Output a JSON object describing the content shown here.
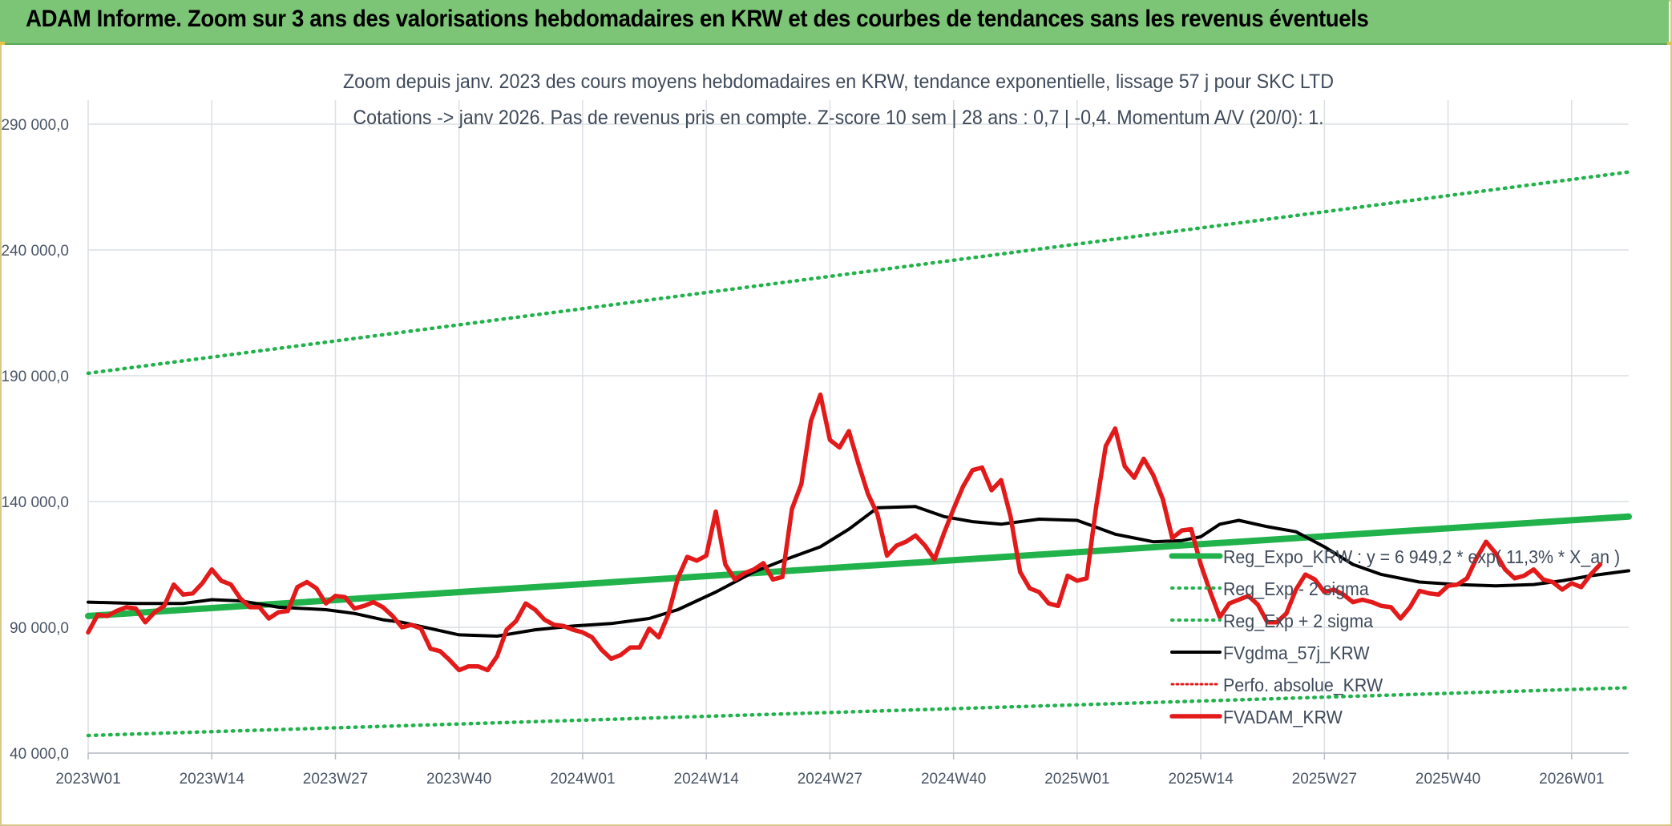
{
  "banner": {
    "title": "ADAM Informe. Zoom sur 3 ans des valorisations hebdomadaires en KRW et des courbes de tendances sans les revenus éventuels"
  },
  "chart_data": {
    "type": "line",
    "title_line1": "Zoom depuis janv. 2023 des cours moyens hebdomadaires en KRW, tendance exponentielle, lissage 57 j pour SKC LTD",
    "title_line2": "Cotations -> janv 2026. Pas de revenus pris en compte. Z-score 10 sem | 28 ans : 0,7 | -0,4. Momentum A/V (20/0): 1.",
    "x_ticks": [
      "2023W01",
      "2023W14",
      "2023W27",
      "2023W40",
      "2024W01",
      "2024W14",
      "2024W27",
      "2024W40",
      "2025W01",
      "2025W14",
      "2025W27",
      "2025W40",
      "2026W01"
    ],
    "y_ticks": [
      {
        "value": 40000,
        "label": "40 000,0"
      },
      {
        "value": 90000,
        "label": "90 000,0"
      },
      {
        "value": 140000,
        "label": "140 000,0"
      },
      {
        "value": 190000,
        "label": "190 000,0"
      },
      {
        "value": 240000,
        "label": "240 000,0"
      },
      {
        "value": 290000,
        "label": "290 000,0"
      }
    ],
    "ylim": [
      40000,
      290000
    ],
    "xlim": [
      0,
      162
    ],
    "grid": true,
    "legend_position": "right-inside",
    "legend": [
      {
        "name": "Reg_Expo_KRW : y = 6 949,2 * exp( 11,3% *  X_an )",
        "color": "#22b24c",
        "style": "solid-thick"
      },
      {
        "name": "Reg_Exp - 2 sigma",
        "color": "#22b24c",
        "style": "dotted"
      },
      {
        "name": "Reg_Exp + 2 sigma",
        "color": "#22b24c",
        "style": "dotted"
      },
      {
        "name": "FVgdma_57j_KRW",
        "color": "#000000",
        "style": "solid"
      },
      {
        "name": "Perfo. absolue_KRW",
        "color": "#e31a1a",
        "style": "dotted"
      },
      {
        "name": "FVADAM_KRW",
        "color": "#e31a1a",
        "style": "solid-thick"
      }
    ],
    "series": [
      {
        "name": "Reg_Expo_KRW",
        "color": "#22b24c",
        "points": [
          [
            0,
            94500
          ],
          [
            162,
            134000
          ]
        ]
      },
      {
        "name": "Reg_Exp - 2 sigma",
        "color": "#22b24c",
        "points": [
          [
            0,
            47000
          ],
          [
            162,
            66000
          ]
        ]
      },
      {
        "name": "Reg_Exp + 2 sigma",
        "color": "#22b24c",
        "points": [
          [
            0,
            191000
          ],
          [
            162,
            271000
          ]
        ]
      },
      {
        "name": "FVgdma_57j_KRW",
        "color": "#000000",
        "points": [
          [
            0,
            100000
          ],
          [
            5,
            99500
          ],
          [
            10,
            99500
          ],
          [
            13,
            101000
          ],
          [
            16,
            100500
          ],
          [
            20,
            98000
          ],
          [
            25,
            97000
          ],
          [
            28,
            95500
          ],
          [
            31,
            93000
          ],
          [
            33,
            92000
          ],
          [
            36,
            89500
          ],
          [
            39,
            87000
          ],
          [
            43,
            86500
          ],
          [
            47,
            89000
          ],
          [
            51,
            90500
          ],
          [
            55,
            91500
          ],
          [
            59,
            93500
          ],
          [
            62,
            97000
          ],
          [
            66,
            104000
          ],
          [
            70,
            112000
          ],
          [
            73,
            116500
          ],
          [
            77,
            122000
          ],
          [
            80,
            129000
          ],
          [
            83,
            137500
          ],
          [
            87,
            138000
          ],
          [
            90,
            134000
          ],
          [
            93,
            132000
          ],
          [
            96,
            131000
          ],
          [
            100,
            133000
          ],
          [
            104,
            132500
          ],
          [
            108,
            127000
          ],
          [
            112,
            124000
          ],
          [
            115,
            124500
          ],
          [
            117,
            126000
          ],
          [
            119,
            131000
          ],
          [
            121,
            132500
          ],
          [
            124,
            130000
          ],
          [
            127,
            128000
          ],
          [
            130,
            122000
          ],
          [
            133,
            115000
          ],
          [
            136,
            111000
          ],
          [
            140,
            108000
          ],
          [
            144,
            107000
          ],
          [
            148,
            106500
          ],
          [
            152,
            107000
          ],
          [
            155,
            108500
          ],
          [
            158,
            110500
          ],
          [
            160,
            111500
          ],
          [
            162,
            112500
          ]
        ]
      },
      {
        "name": "FVADAM_KRW",
        "color": "#e31a1a",
        "points": [
          [
            0,
            88000
          ],
          [
            1,
            95000
          ],
          [
            2,
            94500
          ],
          [
            3,
            96500
          ],
          [
            4,
            98000
          ],
          [
            5,
            97500
          ],
          [
            6,
            92000
          ],
          [
            7,
            96000
          ],
          [
            8,
            98500
          ],
          [
            9,
            107000
          ],
          [
            10,
            103000
          ],
          [
            11,
            103500
          ],
          [
            12,
            107500
          ],
          [
            13,
            113000
          ],
          [
            14,
            108500
          ],
          [
            15,
            107000
          ],
          [
            16,
            101500
          ],
          [
            17,
            98000
          ],
          [
            18,
            98000
          ],
          [
            19,
            93500
          ],
          [
            20,
            96000
          ],
          [
            21,
            96500
          ],
          [
            22,
            106000
          ],
          [
            23,
            108000
          ],
          [
            24,
            105500
          ],
          [
            25,
            99500
          ],
          [
            26,
            102500
          ],
          [
            27,
            102000
          ],
          [
            28,
            97500
          ],
          [
            29,
            98500
          ],
          [
            30,
            100000
          ],
          [
            31,
            98000
          ],
          [
            32,
            94500
          ],
          [
            33,
            90000
          ],
          [
            34,
            91000
          ],
          [
            35,
            89500
          ],
          [
            36,
            81500
          ],
          [
            37,
            80500
          ],
          [
            38,
            77000
          ],
          [
            39,
            73000
          ],
          [
            40,
            74500
          ],
          [
            41,
            74500
          ],
          [
            42,
            73000
          ],
          [
            43,
            78500
          ],
          [
            44,
            89000
          ],
          [
            45,
            92500
          ],
          [
            46,
            99500
          ],
          [
            47,
            97000
          ],
          [
            48,
            93000
          ],
          [
            49,
            91000
          ],
          [
            50,
            90500
          ],
          [
            51,
            89000
          ],
          [
            52,
            88000
          ],
          [
            53,
            86000
          ],
          [
            54,
            81000
          ],
          [
            55,
            77500
          ],
          [
            56,
            79000
          ],
          [
            57,
            82000
          ],
          [
            58,
            82000
          ],
          [
            59,
            89500
          ],
          [
            60,
            86000
          ],
          [
            61,
            95000
          ],
          [
            62,
            109500
          ],
          [
            63,
            118000
          ],
          [
            64,
            116500
          ],
          [
            65,
            118500
          ],
          [
            66,
            136000
          ],
          [
            67,
            115000
          ],
          [
            68,
            109000
          ],
          [
            69,
            111500
          ],
          [
            70,
            113000
          ],
          [
            71,
            115500
          ],
          [
            72,
            109000
          ],
          [
            73,
            110000
          ],
          [
            74,
            137000
          ],
          [
            75,
            147000
          ],
          [
            76,
            172000
          ],
          [
            77,
            182500
          ],
          [
            78,
            164500
          ],
          [
            79,
            161500
          ],
          [
            80,
            168000
          ],
          [
            81,
            155000
          ],
          [
            82,
            143000
          ],
          [
            83,
            135000
          ],
          [
            84,
            118500
          ],
          [
            85,
            122500
          ],
          [
            86,
            124000
          ],
          [
            87,
            126500
          ],
          [
            88,
            122500
          ],
          [
            89,
            117000
          ],
          [
            90,
            127500
          ],
          [
            91,
            137000
          ],
          [
            92,
            146000
          ],
          [
            93,
            152500
          ],
          [
            94,
            153500
          ],
          [
            95,
            144500
          ],
          [
            96,
            148500
          ],
          [
            97,
            134000
          ],
          [
            98,
            112000
          ],
          [
            99,
            105500
          ],
          [
            100,
            104000
          ],
          [
            101,
            99500
          ],
          [
            102,
            98500
          ],
          [
            103,
            110500
          ],
          [
            104,
            108500
          ],
          [
            105,
            109500
          ],
          [
            106,
            138000
          ],
          [
            107,
            162000
          ],
          [
            108,
            169000
          ],
          [
            109,
            154000
          ],
          [
            110,
            149500
          ],
          [
            111,
            157000
          ],
          [
            112,
            150500
          ],
          [
            113,
            141000
          ],
          [
            114,
            125500
          ],
          [
            115,
            128500
          ],
          [
            116,
            129000
          ],
          [
            117,
            115000
          ],
          [
            118,
            104000
          ],
          [
            119,
            94000
          ],
          [
            120,
            99500
          ],
          [
            121,
            101000
          ],
          [
            122,
            102500
          ],
          [
            123,
            99000
          ],
          [
            124,
            92000
          ],
          [
            125,
            92000
          ],
          [
            126,
            95500
          ],
          [
            127,
            105000
          ],
          [
            128,
            111000
          ],
          [
            129,
            109000
          ],
          [
            130,
            104000
          ],
          [
            131,
            105000
          ],
          [
            132,
            103000
          ],
          [
            133,
            100000
          ],
          [
            134,
            101000
          ],
          [
            135,
            100000
          ],
          [
            136,
            98500
          ],
          [
            137,
            98000
          ],
          [
            138,
            93500
          ],
          [
            139,
            98000
          ],
          [
            140,
            104500
          ],
          [
            141,
            103500
          ],
          [
            142,
            103000
          ],
          [
            143,
            106500
          ],
          [
            144,
            107000
          ],
          [
            145,
            109500
          ],
          [
            146,
            117500
          ],
          [
            147,
            124000
          ],
          [
            148,
            119500
          ],
          [
            149,
            113000
          ],
          [
            150,
            109500
          ],
          [
            151,
            110500
          ],
          [
            152,
            113000
          ],
          [
            153,
            109000
          ],
          [
            154,
            108000
          ],
          [
            155,
            105000
          ],
          [
            156,
            107500
          ],
          [
            157,
            106000
          ],
          [
            158,
            111000
          ],
          [
            159,
            115000
          ]
        ]
      }
    ]
  }
}
